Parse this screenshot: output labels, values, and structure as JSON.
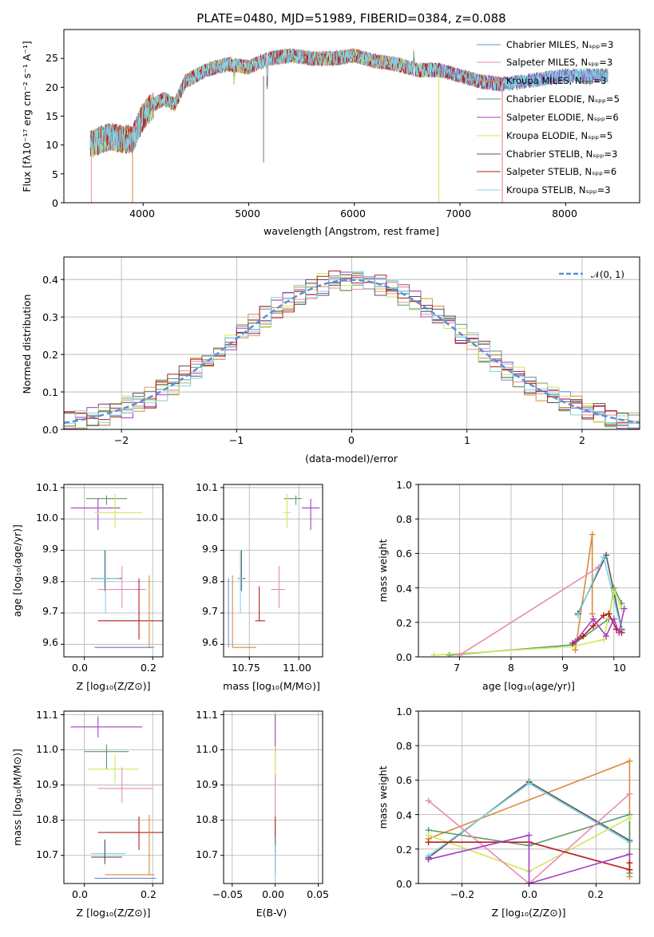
{
  "title": "PLATE=0480, MJD=51989, FIBERID=0384, z=0.088",
  "colors": {
    "chabrier_miles": "#6f8fd6",
    "salpeter_miles": "#ee8f8f",
    "kroupa_miles": "#d98b3a",
    "chabrier_elodie": "#5e9a6a",
    "salpeter_elodie": "#a63fc2",
    "kroupa_elodie": "#d2e65c",
    "chabrier_stelib": "#555555",
    "salpeter_stelib": "#b71c1c",
    "kroupa_stelib": "#7fd3e6",
    "pink": "#e88bb5",
    "normal_curve": "#5b8fd6"
  },
  "chart_data": [
    {
      "id": "spectrum",
      "type": "line",
      "title": "PLATE=0480, MJD=51989, FIBERID=0384, z=0.088",
      "xlabel": "wavelength [Angstrom, rest frame]",
      "ylabel": "Flux [fλ10⁻¹⁷ erg cm⁻² s⁻¹ A⁻¹]",
      "xlim": [
        3250,
        8700
      ],
      "ylim": [
        0,
        30
      ],
      "xticks": [
        "4000",
        "5000",
        "6000",
        "7000",
        "8000"
      ],
      "yticks": [
        "0",
        "5",
        "10",
        "15",
        "20",
        "25"
      ],
      "grid": false,
      "legend_position": "top-right",
      "legend": [
        "Chabrier MILES, Nₛₚₚ=3",
        "Salpeter MILES, Nₛₚₚ=3",
        "Kroupa MILES, Nₛₚₚ=3",
        "Chabrier ELODIE, Nₛₚₚ=5",
        "Salpeter ELODIE, Nₛₚₚ=6",
        "Kroupa ELODIE, Nₛₚₚ=5",
        "Chabrier STELIB, Nₛₚₚ=3",
        "Salpeter STELIB, Nₛₚₚ=6",
        "Kroupa STELIB, Nₛₚₚ=3"
      ],
      "continuum": {
        "x": [
          3500,
          3600,
          3700,
          3800,
          3900,
          4000,
          4100,
          4200,
          4300,
          4400,
          4600,
          4800,
          5000,
          5200,
          5400,
          5600,
          5800,
          6000,
          6200,
          6400,
          6600,
          6800,
          7000,
          7200,
          7400,
          7600,
          7800,
          8000,
          8200,
          8400
        ],
        "y": [
          10,
          11,
          11.5,
          11,
          11,
          15,
          17,
          18,
          17,
          21,
          23,
          24,
          23.5,
          25,
          25.5,
          25,
          25,
          25.5,
          24.5,
          24,
          23,
          23,
          22,
          21,
          20.5,
          21,
          21.5,
          22,
          22,
          22
        ]
      }
    },
    {
      "id": "residuals",
      "type": "line",
      "xlabel": "(data-model)/error",
      "ylabel": "Normed distribution",
      "xlim": [
        -2.5,
        2.5
      ],
      "ylim": [
        0,
        0.46
      ],
      "xticks": [
        "−2",
        "−1",
        "0",
        "1",
        "2"
      ],
      "yticks": [
        "0.0",
        "0.1",
        "0.2",
        "0.3",
        "0.4"
      ],
      "grid": true,
      "legend_position": "top-right",
      "legend": [
        "𝒩(0, 1)"
      ]
    },
    {
      "id": "age_vs_z",
      "type": "scatter",
      "xlabel": "Z [log₁₀(Z/Z⊙)]",
      "ylabel": "age  [log₁₀(age/yr)]",
      "xlim": [
        -0.06,
        0.23
      ],
      "ylim": [
        9.56,
        10.11
      ],
      "xticks": [
        "0.0",
        "0.2"
      ],
      "yticks": [
        "9.6",
        "9.7",
        "9.8",
        "9.9",
        "10.0",
        "10.1"
      ],
      "grid": true
    },
    {
      "id": "age_vs_mass",
      "type": "scatter",
      "xlabel": "mass [log₁₀(M/M⊙)]",
      "ylabel": "",
      "xlim": [
        10.62,
        11.12
      ],
      "ylim": [
        9.56,
        10.11
      ],
      "xticks": [
        "10.75",
        "11.00"
      ],
      "yticks": [
        "9.6",
        "9.7",
        "9.8",
        "9.9",
        "10.0",
        "10.1"
      ],
      "grid": true
    },
    {
      "id": "weight_vs_age",
      "type": "line",
      "xlabel": "age  [log₁₀(age/yr)]",
      "ylabel": "mass weight",
      "xlim": [
        6.2,
        10.5
      ],
      "ylim": [
        0,
        1
      ],
      "xticks": [
        "7",
        "8",
        "9",
        "10"
      ],
      "yticks": [
        "0.0",
        "0.2",
        "0.4",
        "0.6",
        "0.8",
        "1.0"
      ],
      "grid": true,
      "series": [
        {
          "x": [
            9.25,
            9.58,
            9.58
          ],
          "y": [
            0.04,
            0.71,
            0.25
          ]
        },
        {
          "x": [
            9.3,
            9.85,
            10.15
          ],
          "y": [
            0.25,
            0.59,
            0.16
          ]
        },
        {
          "x": [
            9.3,
            9.8,
            10.15
          ],
          "y": [
            0.24,
            0.58,
            0.15
          ]
        },
        {
          "x": [
            6.8,
            9.2,
            9.9,
            10.0,
            10.15
          ],
          "y": [
            0.01,
            0.07,
            0.22,
            0.4,
            0.31
          ]
        },
        {
          "x": [
            6.5,
            9.2,
            9.8,
            10.0,
            10.15
          ],
          "y": [
            0.01,
            0.06,
            0.1,
            0.38,
            0.28
          ]
        },
        {
          "x": [
            7.0,
            9.7
          ],
          "y": [
            0.01,
            0.52
          ]
        },
        {
          "x": [
            9.2,
            9.4,
            9.6,
            9.8,
            9.9,
            10.05,
            10.15
          ],
          "y": [
            0.08,
            0.12,
            0.18,
            0.24,
            0.25,
            0.16,
            0.14
          ]
        },
        {
          "x": [
            9.25,
            9.6,
            9.85,
            10.0,
            10.1,
            10.2
          ],
          "y": [
            0.09,
            0.22,
            0.12,
            0.22,
            0.14,
            0.28
          ]
        }
      ]
    },
    {
      "id": "mass_vs_z",
      "type": "scatter",
      "xlabel": "Z [log₁₀(Z/Z⊙)]",
      "ylabel": "mass [log₁₀(M/M⊙)]",
      "xlim": [
        -0.06,
        0.23
      ],
      "ylim": [
        10.62,
        11.11
      ],
      "xticks": [
        "0.0",
        "0.2"
      ],
      "yticks": [
        "10.7",
        "10.8",
        "10.9",
        "11.0",
        "11.1"
      ],
      "grid": true
    },
    {
      "id": "mass_vs_ebv",
      "type": "scatter",
      "xlabel": "E(B-V)",
      "ylabel": "",
      "xlim": [
        -0.06,
        0.055
      ],
      "ylim": [
        10.62,
        11.11
      ],
      "xticks": [
        "−0.05",
        "0.00",
        "0.05"
      ],
      "yticks": [
        "10.7",
        "10.8",
        "10.9",
        "11.0",
        "11.1"
      ],
      "grid": true
    },
    {
      "id": "weight_vs_z",
      "type": "line",
      "xlabel": "Z [log₁₀(Z/Z⊙)]",
      "ylabel": "mass weight",
      "xlim": [
        -0.33,
        0.33
      ],
      "ylim": [
        0,
        1
      ],
      "xticks": [
        "−0.2",
        "0.0",
        "0.2"
      ],
      "yticks": [
        "0.0",
        "0.2",
        "0.4",
        "0.6",
        "0.8",
        "1.0"
      ],
      "grid": true,
      "series": [
        {
          "x": [
            -0.3,
            0.3,
            0.3
          ],
          "y": [
            0.26,
            0.71,
            0.04
          ]
        },
        {
          "x": [
            -0.3,
            0.0,
            0.3
          ],
          "y": [
            0.15,
            0.59,
            0.25
          ]
        },
        {
          "x": [
            -0.3,
            0.0,
            0.3
          ],
          "y": [
            0.16,
            0.58,
            0.24
          ]
        },
        {
          "x": [
            -0.3,
            0.0,
            0.3,
            0.3
          ],
          "y": [
            0.31,
            0.22,
            0.4,
            0.06
          ]
        },
        {
          "x": [
            -0.3,
            0.0,
            0.3
          ],
          "y": [
            0.28,
            0.07,
            0.38
          ]
        },
        {
          "x": [
            -0.3,
            0.0,
            0.3
          ],
          "y": [
            0.48,
            0.0,
            0.52
          ]
        },
        {
          "x": [
            -0.3,
            0.0,
            0.3,
            0.3
          ],
          "y": [
            0.24,
            0.24,
            0.08,
            0.12
          ]
        },
        {
          "x": [
            -0.3,
            0.0,
            0.0,
            0.3
          ],
          "y": [
            0.14,
            0.28,
            0.0,
            0.17
          ]
        }
      ]
    }
  ]
}
